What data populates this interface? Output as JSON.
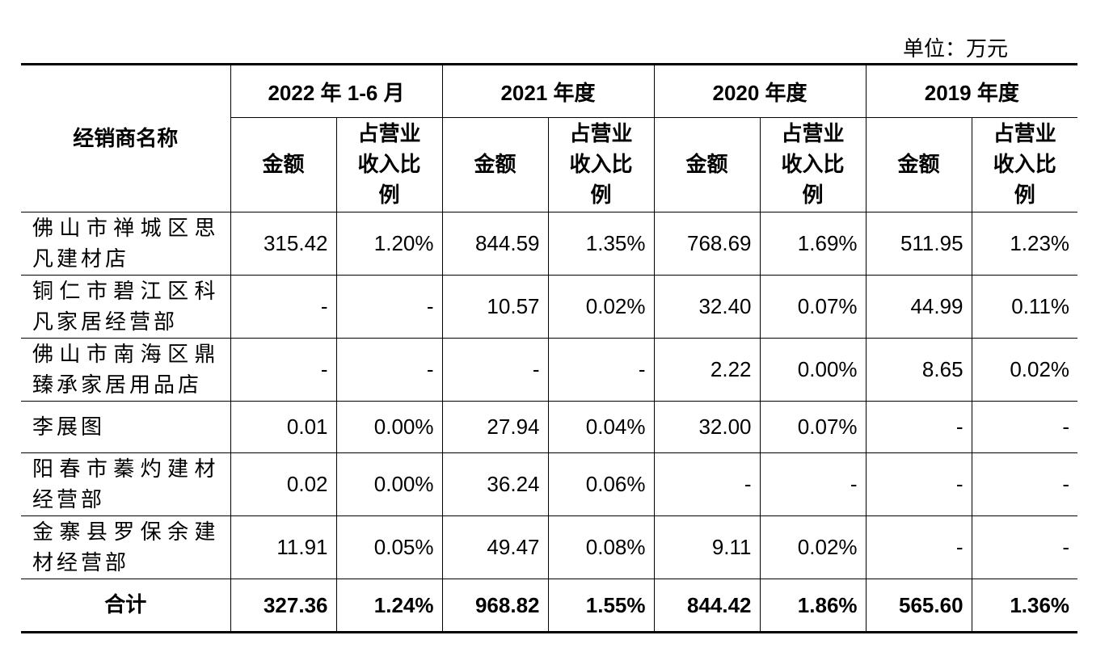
{
  "unit": "单位：万元",
  "header": {
    "name_col": "经销商名称",
    "periods": [
      "2022 年 1-6 月",
      "2021 年度",
      "2020 年度",
      "2019 年度"
    ],
    "amount": "金额",
    "ratio": "占营业收入比例"
  },
  "rows": [
    {
      "name": "佛山市禅城区思凡建材店",
      "values": [
        "315.42",
        "1.20%",
        "844.59",
        "1.35%",
        "768.69",
        "1.69%",
        "511.95",
        "1.23%"
      ]
    },
    {
      "name": "铜仁市碧江区科凡家居经营部",
      "values": [
        "-",
        "-",
        "10.57",
        "0.02%",
        "32.40",
        "0.07%",
        "44.99",
        "0.11%"
      ]
    },
    {
      "name": "佛山市南海区鼎臻承家居用品店",
      "values": [
        "-",
        "-",
        "-",
        "-",
        "2.22",
        "0.00%",
        "8.65",
        "0.02%"
      ]
    },
    {
      "name": "李展图",
      "values": [
        "0.01",
        "0.00%",
        "27.94",
        "0.04%",
        "32.00",
        "0.07%",
        "-",
        "-"
      ]
    },
    {
      "name": "阳春市蓁灼建材经营部",
      "values": [
        "0.02",
        "0.00%",
        "36.24",
        "0.06%",
        "-",
        "-",
        "-",
        "-"
      ]
    },
    {
      "name": "金寨县罗保余建材经营部",
      "values": [
        "11.91",
        "0.05%",
        "49.47",
        "0.08%",
        "9.11",
        "0.02%",
        "-",
        "-"
      ]
    }
  ],
  "total": {
    "name": "合计",
    "values": [
      "327.36",
      "1.24%",
      "968.82",
      "1.55%",
      "844.42",
      "1.86%",
      "565.60",
      "1.36%"
    ]
  }
}
